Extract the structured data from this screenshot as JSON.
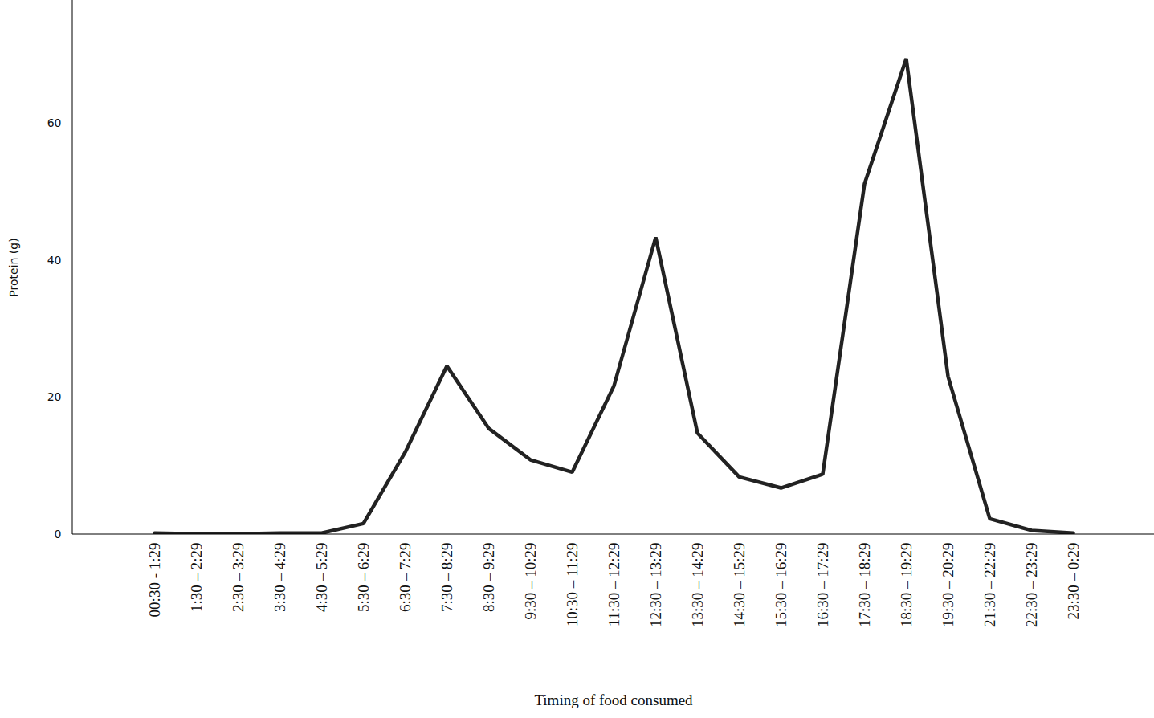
{
  "chart_data": {
    "type": "line",
    "x_label": "Timing of food consumed",
    "y_label": "Protein (g)",
    "categories": [
      "00:30 - 1:29",
      "1:30 – 2:29",
      "2:30 – 3:29",
      "3:30 – 4:29",
      "4:30 – 5:29",
      "5:30 – 6:29",
      "6:30 – 7:29",
      "7:30 – 8:29",
      "8:30 – 9:29",
      "9:30 – 10:29",
      "10:30 – 11:29",
      "11:30 – 12:29",
      "12:30 – 13:29",
      "13:30 – 14:29",
      "14:30 – 15:29",
      "15:30 – 16:29",
      "16:30 – 17:29",
      "17:30 – 18:29",
      "18:30 – 19:29",
      "19:30 – 20:29",
      "21:30 – 22:29",
      "22:30 – 23:29",
      "23:30 – 0:29"
    ],
    "values": [
      0.2,
      0.1,
      0.1,
      0.2,
      0.2,
      1.6,
      12,
      24.6,
      15.5,
      10.9,
      9.1,
      21.7,
      43.4,
      14.8,
      8.4,
      6.8,
      8.8,
      51.2,
      69.5,
      23.1,
      2.3,
      0.6,
      0.2
    ],
    "color": "#222222",
    "ylim": [
      0,
      78
    ],
    "yticks": [
      0,
      20,
      40,
      60
    ]
  }
}
